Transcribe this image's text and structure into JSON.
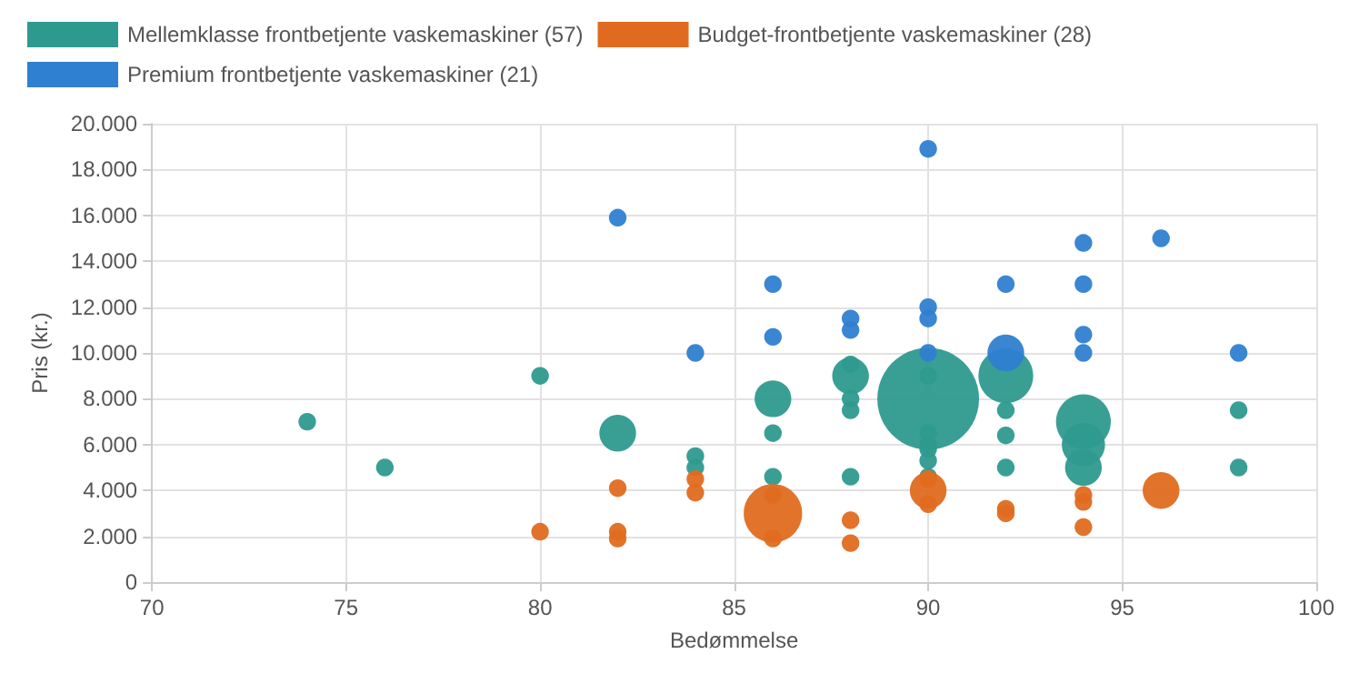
{
  "chart_data": {
    "type": "bubble",
    "xlabel": "Bedømmelse",
    "ylabel": "Pris (kr.)",
    "xlim": [
      70,
      100
    ],
    "xticks": [
      70,
      75,
      80,
      85,
      90,
      95,
      100
    ],
    "ylim": [
      0,
      20000
    ],
    "yticks": [
      0,
      {
        "value": 2000,
        "label": "2.000"
      },
      {
        "value": 4000,
        "label": "4.000"
      },
      {
        "value": 6000,
        "label": "6.000"
      },
      {
        "value": 8000,
        "label": "8.000"
      },
      {
        "value": 10000,
        "label": "10.000"
      },
      {
        "value": 12000,
        "label": "12.000"
      },
      {
        "value": 14000,
        "label": "14.000"
      },
      {
        "value": 16000,
        "label": "16.000"
      },
      {
        "value": 18000,
        "label": "18.000"
      },
      {
        "value": 20000,
        "label": "20.000"
      }
    ],
    "grid": true,
    "legend": "top left",
    "series": [
      {
        "name": "Mellemklasse frontbetjente vaskemaskiner (57)",
        "color": "#2e9a8f",
        "x": [
          74,
          76,
          80,
          82,
          84,
          84,
          86,
          86,
          86,
          88,
          88,
          88,
          88,
          88,
          90,
          90,
          90,
          90,
          90,
          90,
          90,
          92,
          92,
          92,
          92,
          94,
          94,
          94,
          98,
          98
        ],
        "values": [
          7000,
          5000,
          9000,
          6500,
          5500,
          5000,
          8000,
          6500,
          4600,
          9000,
          9500,
          8000,
          7500,
          4600,
          8000,
          9000,
          6500,
          5800,
          5300,
          4600,
          6000,
          9000,
          7500,
          6400,
          5000,
          7000,
          6000,
          5000,
          7500,
          5000
        ],
        "sizes": [
          0.03,
          0.03,
          0.03,
          0.13,
          0.03,
          0.03,
          0.13,
          0.03,
          0.03,
          0.13,
          0.03,
          0.03,
          0.03,
          0.03,
          1,
          0.03,
          0.03,
          0.03,
          0.03,
          0.03,
          0.03,
          0.29,
          0.03,
          0.03,
          0.03,
          0.29,
          0.18,
          0.13,
          0.03,
          0.03
        ]
      },
      {
        "name": "Budget-frontbetjente vaskemaskiner (28)",
        "color": "#e06b20",
        "x": [
          80,
          82,
          82,
          82,
          84,
          84,
          86,
          86,
          86,
          88,
          88,
          90,
          90,
          90,
          92,
          92,
          94,
          94,
          94,
          96
        ],
        "values": [
          2200,
          4100,
          2200,
          1900,
          4500,
          3900,
          3000,
          1900,
          3800,
          2700,
          1700,
          4000,
          3400,
          4500,
          3200,
          3000,
          3800,
          3500,
          2400,
          4000
        ],
        "sizes": [
          0.03,
          0.03,
          0.03,
          0.03,
          0.03,
          0.03,
          0.33,
          0.03,
          0.03,
          0.03,
          0.03,
          0.13,
          0.03,
          0.03,
          0.03,
          0.03,
          0.03,
          0.03,
          0.03,
          0.13
        ]
      },
      {
        "name": "Premium frontbetjente vaskemaskiner (21)",
        "color": "#2f80d0",
        "x": [
          82,
          84,
          86,
          86,
          88,
          88,
          90,
          90,
          90,
          90,
          92,
          92,
          94,
          94,
          94,
          94,
          96,
          98
        ],
        "values": [
          15900,
          10000,
          13000,
          10700,
          11500,
          11000,
          18900,
          12000,
          11500,
          10000,
          13000,
          10000,
          14800,
          13000,
          10800,
          10000,
          15000,
          10000
        ],
        "sizes": [
          0.03,
          0.03,
          0.03,
          0.03,
          0.03,
          0.03,
          0.03,
          0.03,
          0.03,
          0.03,
          0.03,
          0.13,
          0.03,
          0.03,
          0.03,
          0.03,
          0.03,
          0.03
        ]
      }
    ]
  }
}
